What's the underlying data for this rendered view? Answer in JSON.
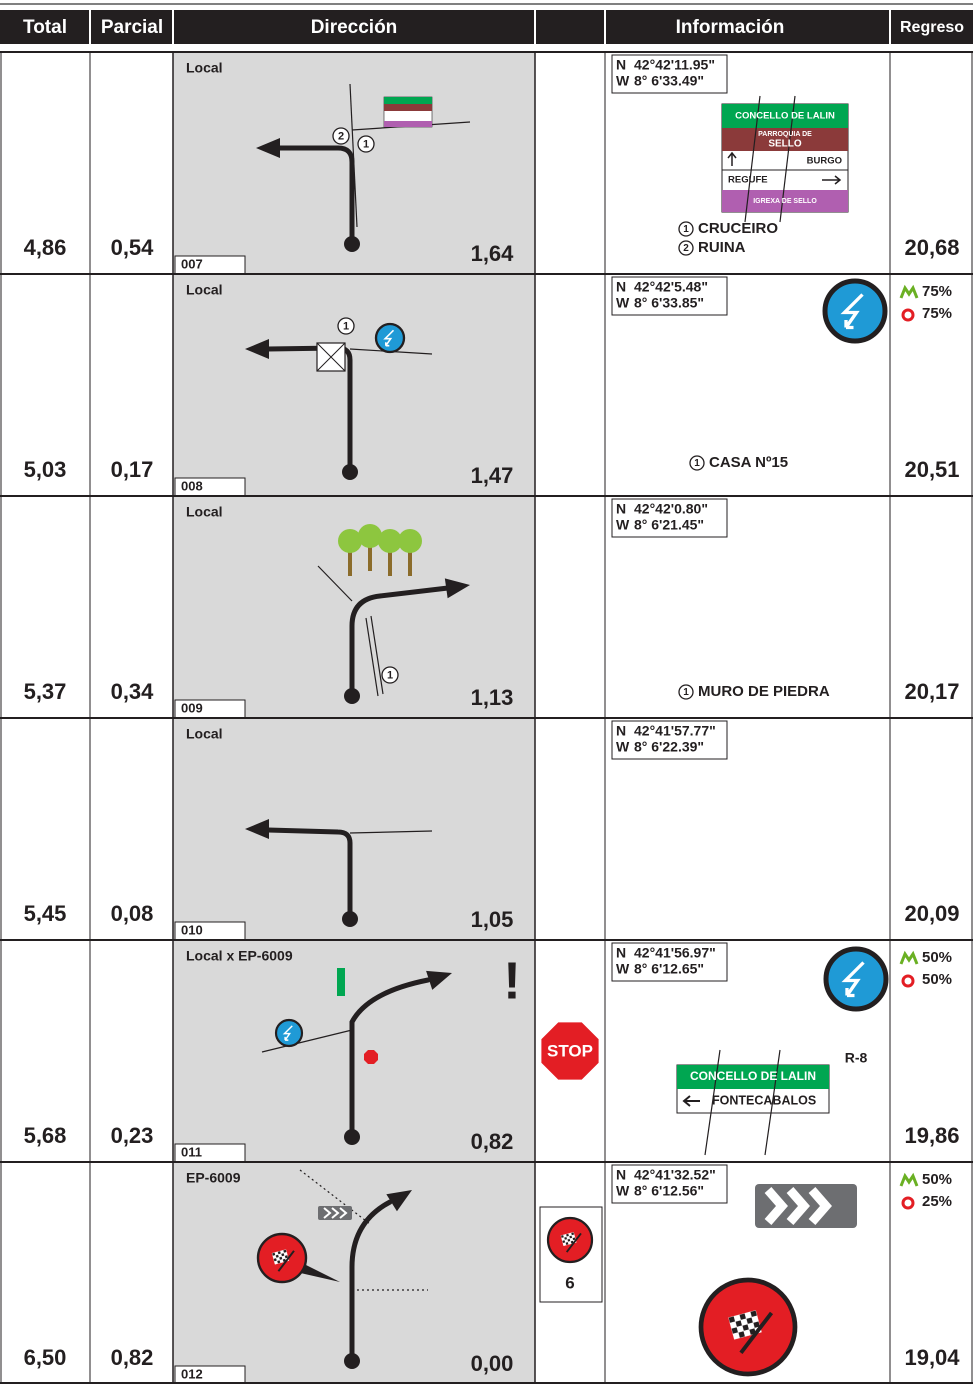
{
  "header": {
    "columns": [
      "Total",
      "Parcial",
      "Dirección",
      "Información",
      "Regreso"
    ]
  },
  "rows": [
    {
      "total": "4,86",
      "parcial": "0,54",
      "road": "Local",
      "id": "007",
      "distance": "1,64",
      "north_label": "N",
      "north": "42°42'11.95\"",
      "west_label": "W",
      "west": "8° 6'33.49\"",
      "diagram_marks": [
        "2",
        "1"
      ],
      "notes": [
        {
          "num": "1",
          "text": "CRUCEIRO"
        },
        {
          "num": "2",
          "text": "RUINA"
        }
      ],
      "regreso": "20,68",
      "panel": [
        "CONCELLO DE LALIN",
        "PARROQUIA DE",
        "SELLO",
        "BURGO",
        "REGUFE",
        "IGREXA DE SELLO"
      ]
    },
    {
      "total": "5,03",
      "parcial": "0,17",
      "road": "Local",
      "id": "008",
      "distance": "1,47",
      "north_label": "N",
      "north": "42°42'5.48\"",
      "west_label": "W",
      "west": "8° 6'33.85\"",
      "diagram_marks": [
        "1"
      ],
      "notes": [
        {
          "num": "1",
          "text": "CASA Nº15"
        }
      ],
      "regreso": "20,51",
      "coverage": [
        "75%",
        "75%"
      ]
    },
    {
      "total": "5,37",
      "parcial": "0,34",
      "road": "Local",
      "id": "009",
      "distance": "1,13",
      "north_label": "N",
      "north": "42°42'0.80\"",
      "west_label": "W",
      "west": "8° 6'21.45\"",
      "diagram_marks": [
        "1"
      ],
      "notes": [
        {
          "num": "1",
          "text": "MURO DE PIEDRA"
        }
      ],
      "regreso": "20,17"
    },
    {
      "total": "5,45",
      "parcial": "0,08",
      "road": "Local",
      "id": "010",
      "distance": "1,05",
      "north_label": "N",
      "north": "42°41'57.77\"",
      "west_label": "W",
      "west": "8° 6'22.39\"",
      "regreso": "20,09"
    },
    {
      "total": "5,68",
      "parcial": "0,23",
      "road": "Local x EP-6009",
      "id": "011",
      "distance": "0,82",
      "north_label": "N",
      "north": "42°41'56.97\"",
      "west_label": "W",
      "west": "8° 6'12.65\"",
      "regreso": "19,86",
      "coverage": [
        "50%",
        "50%"
      ],
      "alert": "!",
      "stop": "STOP",
      "signal": "R-8",
      "panel": [
        "CONCELLO DE LALIN",
        "FONTECABALOS"
      ]
    },
    {
      "total": "6,50",
      "parcial": "0,82",
      "road": "EP-6009",
      "id": "012",
      "distance": "0,00",
      "north_label": "N",
      "north": "42°41'32.52\"",
      "west_label": "W",
      "west": "8° 6'12.56\"",
      "regreso": "19,04",
      "coverage": [
        "50%",
        "25%"
      ],
      "side_number": "6"
    }
  ]
}
